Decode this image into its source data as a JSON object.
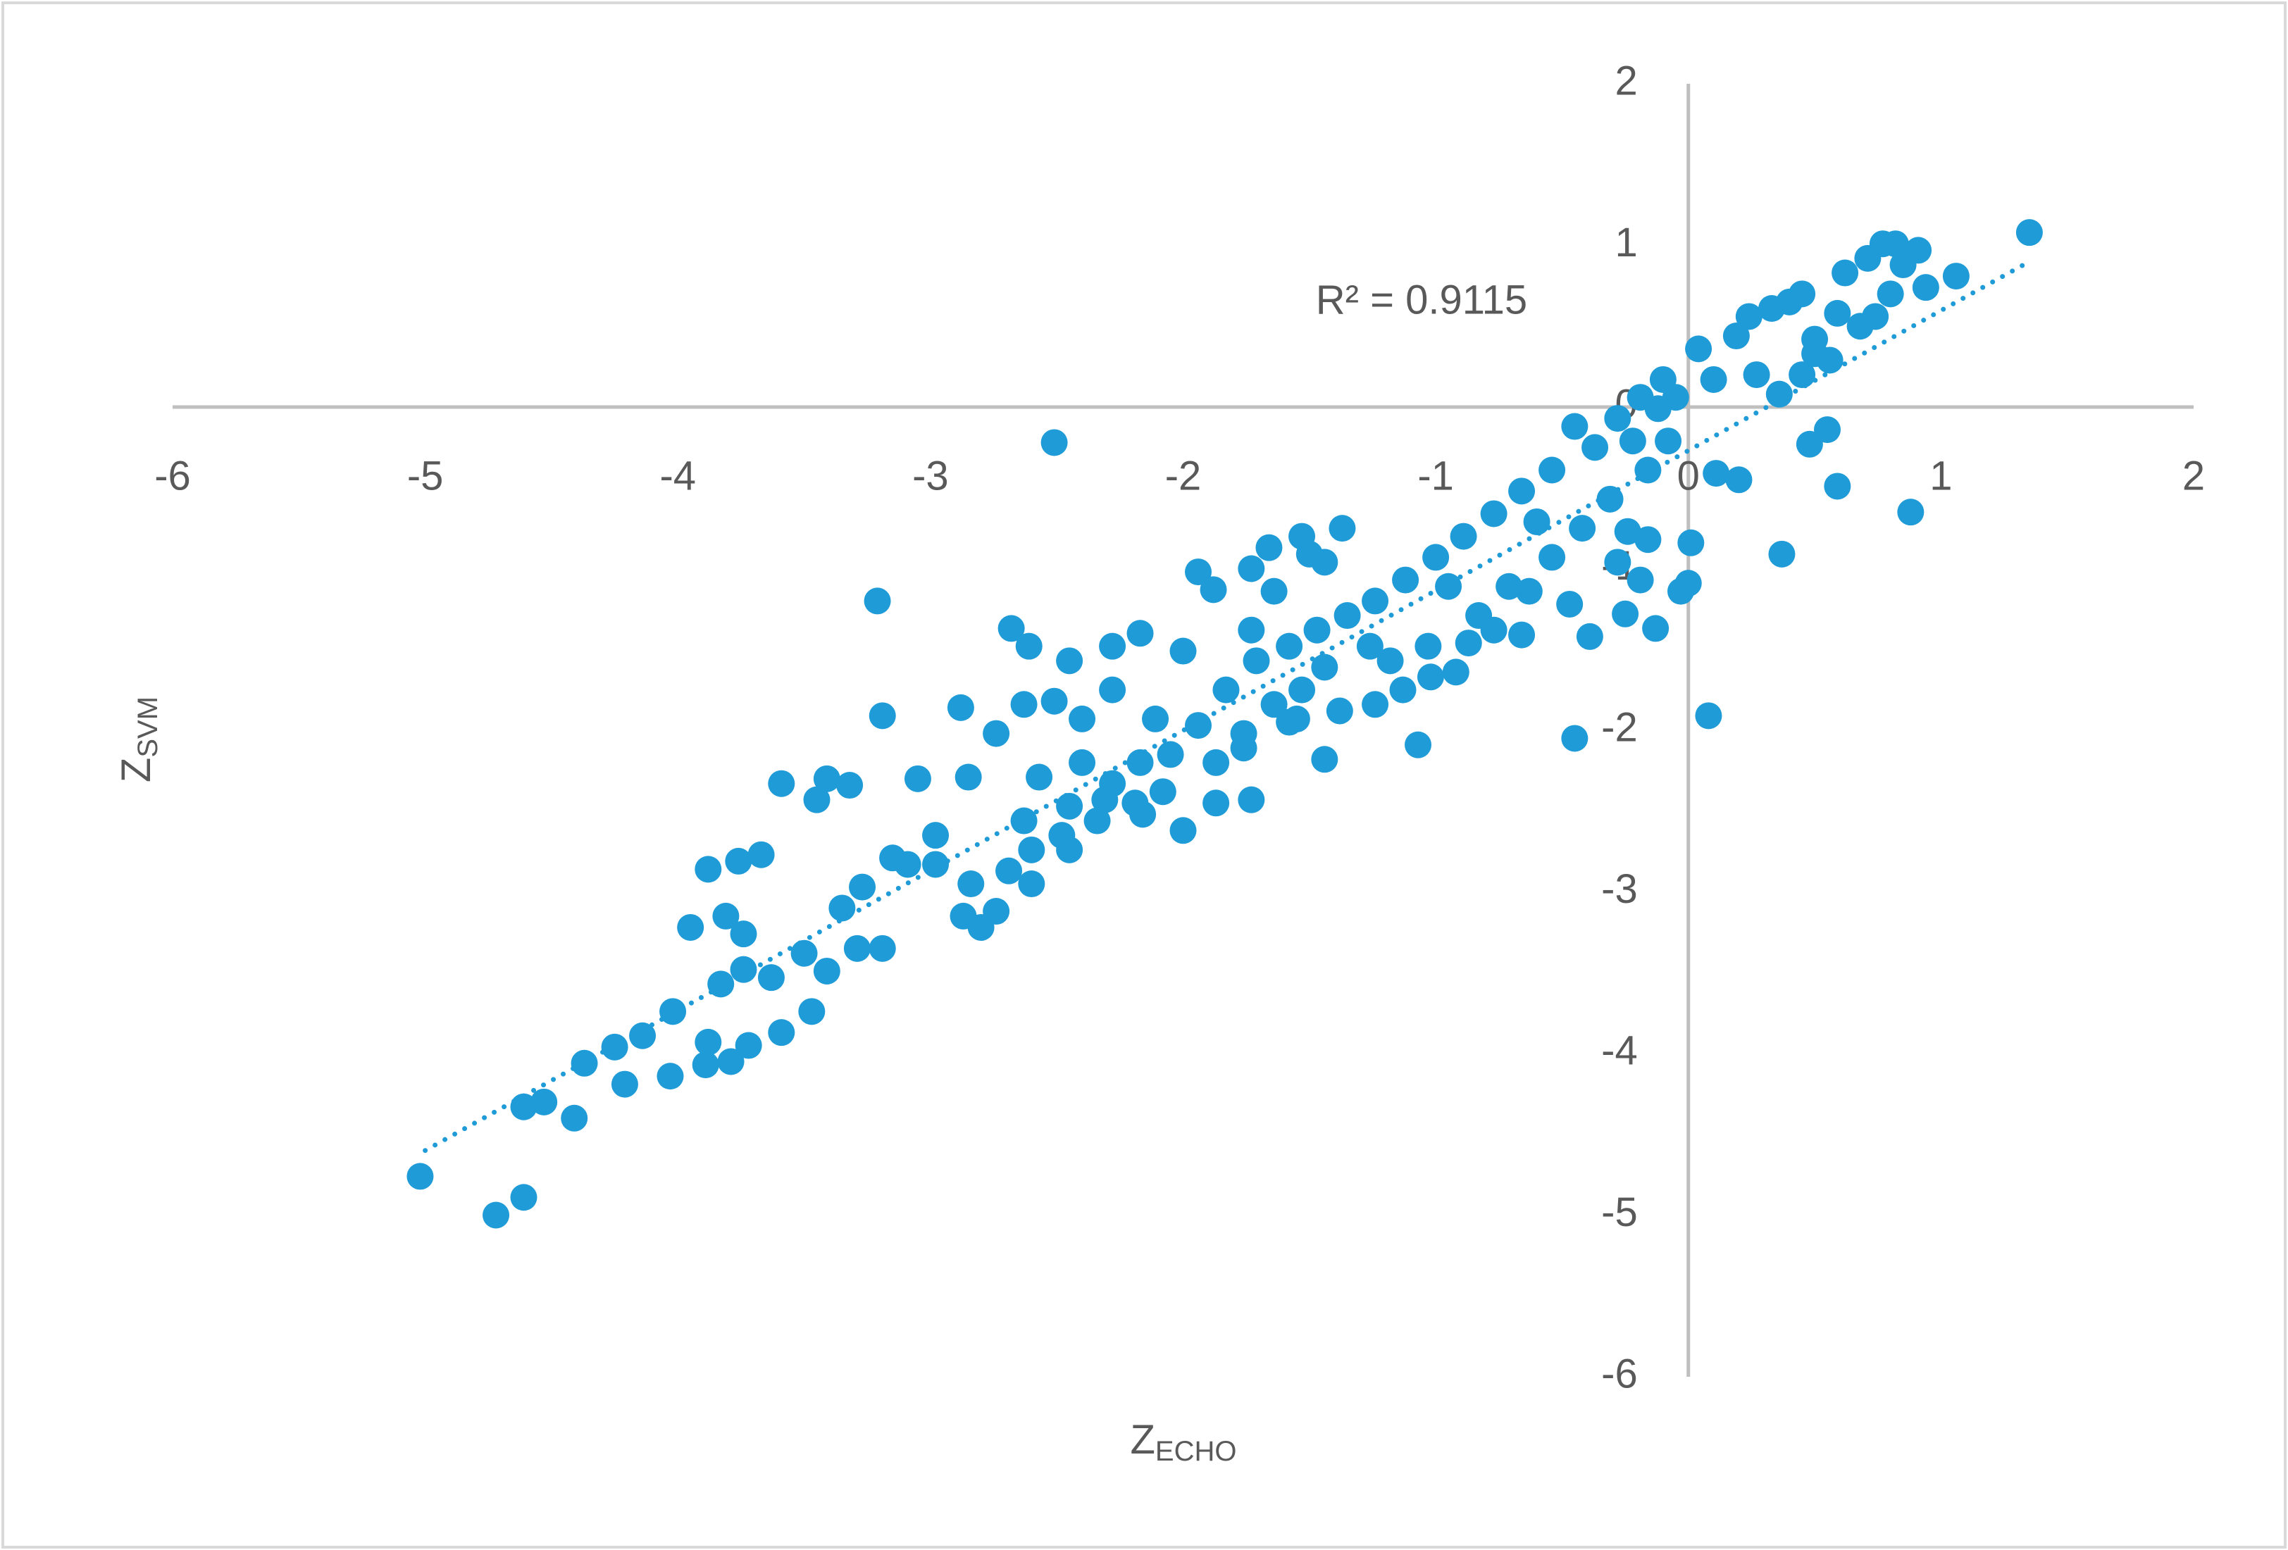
{
  "chart_data": {
    "type": "scatter",
    "xlabel": "Z",
    "xlabel_sub": "ECHO",
    "ylabel": "Z",
    "ylabel_sub": "SVM",
    "annotation": "R² = 0.9115",
    "xlim": [
      -6,
      2
    ],
    "ylim": [
      -6,
      2
    ],
    "xticks": [
      -6,
      -5,
      -4,
      -3,
      -2,
      -1,
      0,
      1,
      2
    ],
    "yticks": [
      -6,
      -5,
      -4,
      -3,
      -2,
      -1,
      0,
      1,
      2
    ],
    "color": "#1f9bd7",
    "axis_color": "#bfbfbf",
    "trendline": {
      "x": [
        -5,
        1.35
      ],
      "y": [
        -4.6,
        0.9
      ],
      "style": "dotted"
    },
    "series": [
      {
        "name": "Z",
        "color": "#1f9bd7",
        "x": [
          -5.02,
          -4.72,
          -4.61,
          -4.41,
          -4.61,
          -4.37,
          -4.21,
          -4.03,
          -3.89,
          -3.79,
          -3.72,
          -3.88,
          -3.59,
          -3.47,
          -4.02,
          -3.95,
          -3.88,
          -3.76,
          -3.67,
          -3.59,
          -3.41,
          -3.32,
          -3.45,
          -3.21,
          -3.19,
          -3.05,
          -3.19,
          -3.29,
          -3.35,
          -3.41,
          -3.5,
          -3.63,
          -3.74,
          -3.83,
          -3.81,
          -3.74,
          -4.14,
          -4.25,
          -4.53,
          -2.51,
          -2.88,
          -2.68,
          -2.61,
          -2.45,
          -2.28,
          -2.17,
          -2.0,
          -1.94,
          -1.88,
          -1.73,
          -1.66,
          -1.53,
          -1.37,
          -1.44,
          -1.5,
          -1.64,
          -1.73,
          -1.64,
          -1.44,
          -1.07,
          -0.45,
          0.08,
          0.37,
          0.88,
          0.59,
          0.48,
          0.55,
          0.2,
          0.11,
          0.01,
          0.0,
          -0.03,
          -0.13,
          -0.25,
          -0.28,
          -0.19,
          -0.16,
          -0.24,
          -0.39,
          -0.47,
          -0.63,
          -0.66,
          -0.77,
          -0.87,
          -0.92,
          -1.02,
          -1.13,
          -1.24,
          -1.38,
          -1.58,
          -1.73,
          -1.87,
          -2.0,
          -2.16,
          -2.31,
          -2.45,
          -2.6,
          -2.74,
          -2.8,
          -2.87,
          -2.84,
          -2.98,
          -2.85,
          -2.74,
          -2.63,
          -2.51,
          -2.4,
          -2.28,
          -2.11,
          -2.17,
          -2.4,
          -2.57,
          -2.63,
          -2.45,
          -2.28,
          -2.05,
          -1.94,
          -1.83,
          -1.71,
          -1.58,
          -1.47,
          -1.35,
          -1.24,
          -1.12,
          -1.0,
          -0.89,
          -0.77,
          -0.66,
          -0.54,
          -0.45,
          -0.37,
          -0.28,
          -0.19,
          -0.1,
          0.04,
          0.19,
          0.27,
          0.36,
          0.45,
          0.5,
          0.59,
          0.62,
          0.71,
          0.77,
          0.82,
          0.91,
          1.06,
          0.8,
          0.68,
          0.56,
          0.4,
          0.33,
          0.45,
          0.24,
          0.1,
          -0.05,
          -0.12,
          -0.22,
          1.35,
          0.94,
          0.85,
          0.5,
          0.74,
          -3.09,
          -3.15,
          -3.27,
          -2.98,
          -2.69,
          -2.6,
          -2.48,
          -2.34,
          -2.19,
          -2.08,
          -1.87,
          -1.76,
          -1.55,
          -1.18,
          -1.03,
          -0.83,
          -0.71,
          -0.54,
          -0.42,
          -0.31,
          -0.16,
          -0.08,
          -0.6,
          -0.95,
          -1.26,
          -1.44,
          -1.53,
          -1.76
        ],
        "values": [
          -4.76,
          -5.0,
          -4.89,
          -4.4,
          -4.33,
          -4.06,
          -4.19,
          -4.14,
          -4.07,
          -4.05,
          -3.95,
          -3.93,
          -3.87,
          -3.74,
          -3.74,
          -3.22,
          -2.86,
          -2.81,
          -2.77,
          -2.33,
          -2.3,
          -2.34,
          -2.43,
          -1.2,
          -1.91,
          -2.3,
          -3.35,
          -3.35,
          -3.1,
          -3.49,
          -3.38,
          -3.53,
          -3.48,
          -3.57,
          -3.15,
          -3.26,
          -3.89,
          -3.96,
          -4.3,
          -0.22,
          -1.86,
          -1.37,
          -1.48,
          -1.57,
          -1.48,
          -1.4,
          -1.51,
          -1.02,
          -1.13,
          -1.0,
          -0.87,
          -0.8,
          -0.75,
          -0.96,
          -0.91,
          -1.14,
          -1.38,
          -1.84,
          -2.18,
          -2.09,
          -2.05,
          -1.91,
          -0.91,
          -0.65,
          -0.49,
          -0.23,
          -0.14,
          -0.45,
          -0.41,
          -0.84,
          -1.09,
          -1.14,
          -1.37,
          -1.28,
          -0.96,
          -1.07,
          -0.82,
          -0.77,
          -1.42,
          -1.22,
          -1.14,
          -1.41,
          -1.38,
          -1.46,
          -1.64,
          -1.67,
          -1.75,
          -1.84,
          -1.88,
          -1.95,
          -2.43,
          -2.45,
          -2.62,
          -2.52,
          -2.43,
          -2.74,
          -2.95,
          -3.12,
          -3.22,
          -3.15,
          -2.95,
          -2.65,
          -2.29,
          -2.02,
          -1.84,
          -1.82,
          -1.93,
          -1.75,
          -1.93,
          -2.2,
          -2.2,
          -2.29,
          -2.56,
          -2.47,
          -2.33,
          -2.15,
          -1.97,
          -1.75,
          -1.57,
          -1.48,
          -1.38,
          -1.29,
          -1.2,
          -1.07,
          -0.93,
          -0.8,
          -0.66,
          -0.52,
          -0.39,
          -0.12,
          -0.25,
          -0.07,
          0.06,
          0.17,
          0.36,
          0.44,
          0.2,
          0.08,
          0.2,
          0.33,
          0.58,
          0.83,
          0.92,
          1.01,
          1.01,
          0.97,
          0.81,
          0.7,
          0.5,
          0.29,
          0.65,
          0.61,
          0.7,
          0.56,
          0.17,
          0.06,
          -0.01,
          -0.21,
          1.08,
          0.74,
          0.88,
          0.42,
          0.56,
          -2.83,
          -2.79,
          -2.97,
          -2.83,
          -2.87,
          -2.74,
          -2.65,
          -2.56,
          -2.45,
          -2.38,
          -2.2,
          -2.11,
          -1.93,
          -1.57,
          -1.48,
          -1.29,
          -1.11,
          -0.93,
          -0.75,
          -0.57,
          -0.39,
          -0.21,
          -0.71,
          -1.11,
          -1.48,
          -1.61,
          -1.75,
          -2.02
        ]
      }
    ]
  }
}
